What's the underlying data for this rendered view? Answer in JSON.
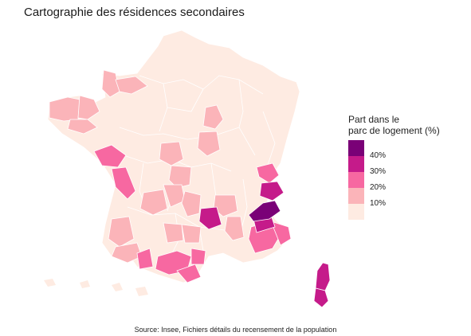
{
  "map": {
    "title": "Cartographie des résidences secondaires",
    "source": "Source: Insee, Fichiers détails du recensement de la population",
    "legend": {
      "title_lines": [
        "Part dans le",
        "parc de logement (%)"
      ],
      "bins": [
        {
          "label": "",
          "color": "#7a0177"
        },
        {
          "label": "40%",
          "color": "#c51b8a"
        },
        {
          "label": "30%",
          "color": "#f768a1"
        },
        {
          "label": "20%",
          "color": "#fbb4b9"
        },
        {
          "label": "10%",
          "color": "#feebe2"
        }
      ]
    },
    "colors": {
      "very_high": "#7a0177",
      "high": "#c51b8a",
      "medium": "#f768a1",
      "low": "#fbb4b9",
      "very_low": "#feebe2",
      "border": "#ffffff"
    }
  }
}
